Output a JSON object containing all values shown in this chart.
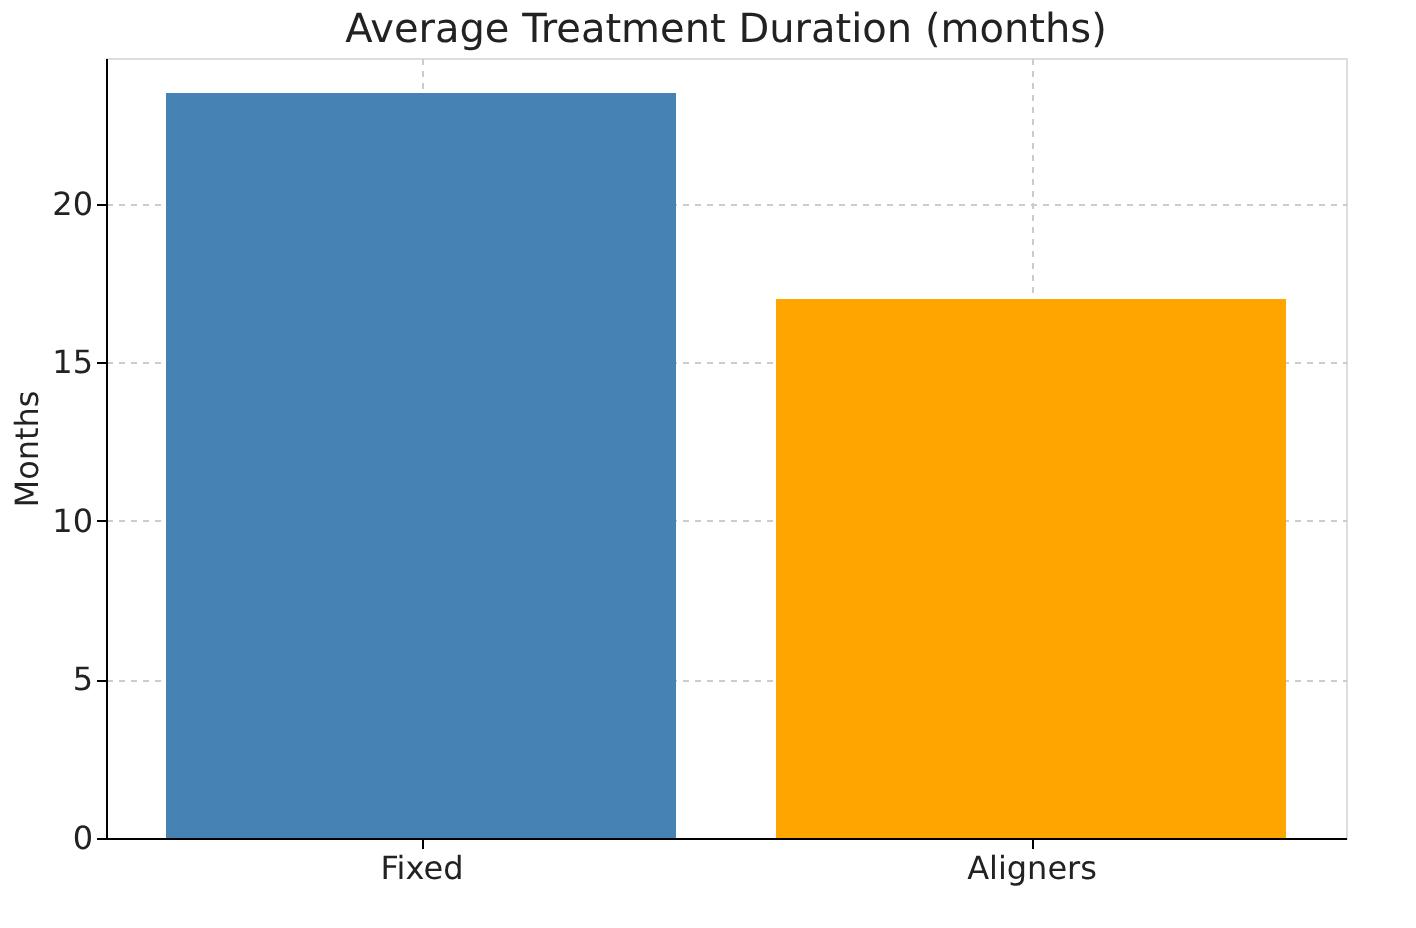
{
  "chart_data": {
    "type": "bar",
    "title": "Average Treatment Duration (months)",
    "ylabel": "Months",
    "categories": [
      "Fixed",
      "Aligners"
    ],
    "values": [
      23.5,
      17
    ],
    "colors": [
      "#4682b4",
      "#ffa500"
    ],
    "ylim": [
      0,
      24.6
    ],
    "yticks": [
      0,
      5,
      10,
      15,
      20
    ],
    "grid": true
  }
}
